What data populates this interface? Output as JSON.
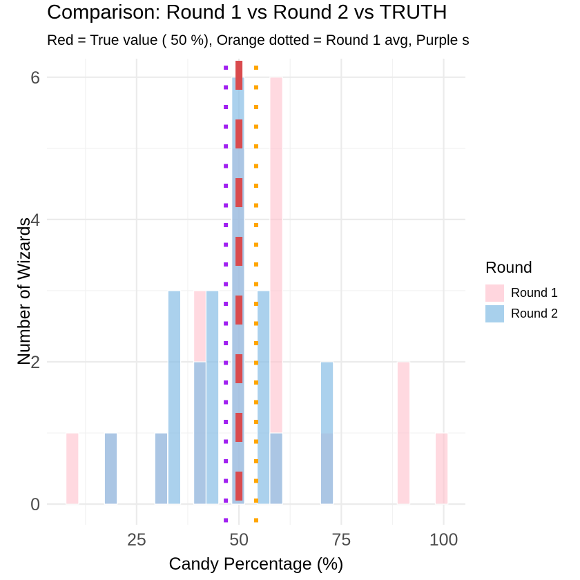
{
  "chart_data": {
    "type": "bar",
    "subtype": "overlapping-histogram",
    "title": "Comparison: Round 1 vs Round 2 vs TRUTH",
    "subtitle": "Red = True value ( 50 %), Orange dotted = Round 1 avg, Purple s",
    "xlabel": "Candy Percentage (%)",
    "ylabel": "Number of Wizards",
    "xlim": [
      3.1,
      105.3
    ],
    "ylim": [
      -0.29,
      6.26
    ],
    "x_ticks": [
      25,
      50,
      75,
      100
    ],
    "x_tick_labels": [
      "25",
      "50",
      "75",
      "100"
    ],
    "x_minor_ticks": [
      12.5,
      37.5,
      62.5,
      87.5
    ],
    "y_ticks": [
      0,
      2,
      4,
      6
    ],
    "y_tick_labels": [
      "0",
      "2",
      "4",
      "6"
    ],
    "y_minor_ticks": [
      1,
      3,
      5
    ],
    "grid": true,
    "binwidth": 3.1,
    "bin_centers": [
      9.3,
      18.7,
      31.0,
      34.2,
      40.5,
      43.5,
      49.8,
      56.0,
      59.1,
      71.5,
      90.2,
      99.5
    ],
    "series": [
      {
        "name": "Round 1",
        "color": "#FFC0CB",
        "values": [
          1,
          1,
          1,
          0,
          3,
          0,
          5,
          0,
          6,
          1,
          2,
          1
        ]
      },
      {
        "name": "Round 2",
        "color": "#87BDE6",
        "values": [
          0,
          1,
          1,
          3,
          2,
          3,
          6,
          3,
          1,
          2,
          0,
          0
        ]
      }
    ],
    "reference_lines": [
      {
        "name": "True value",
        "x": 50,
        "color": "#D94B4E",
        "style": "dashed"
      },
      {
        "name": "Round 1 avg",
        "x": 54.2,
        "color": "#FFA500",
        "style": "dotted"
      },
      {
        "name": "Round 2 avg",
        "x": 46.8,
        "color": "#A020F0",
        "style": "dotted"
      }
    ],
    "legend": {
      "title": "Round",
      "position": "right",
      "entries": [
        "Round 1",
        "Round 2"
      ]
    }
  },
  "legend": {
    "title": "Round",
    "items": [
      {
        "label": "Round 1",
        "color": "#FFD6DE"
      },
      {
        "label": "Round 2",
        "color": "#A8D0EC"
      }
    ]
  }
}
